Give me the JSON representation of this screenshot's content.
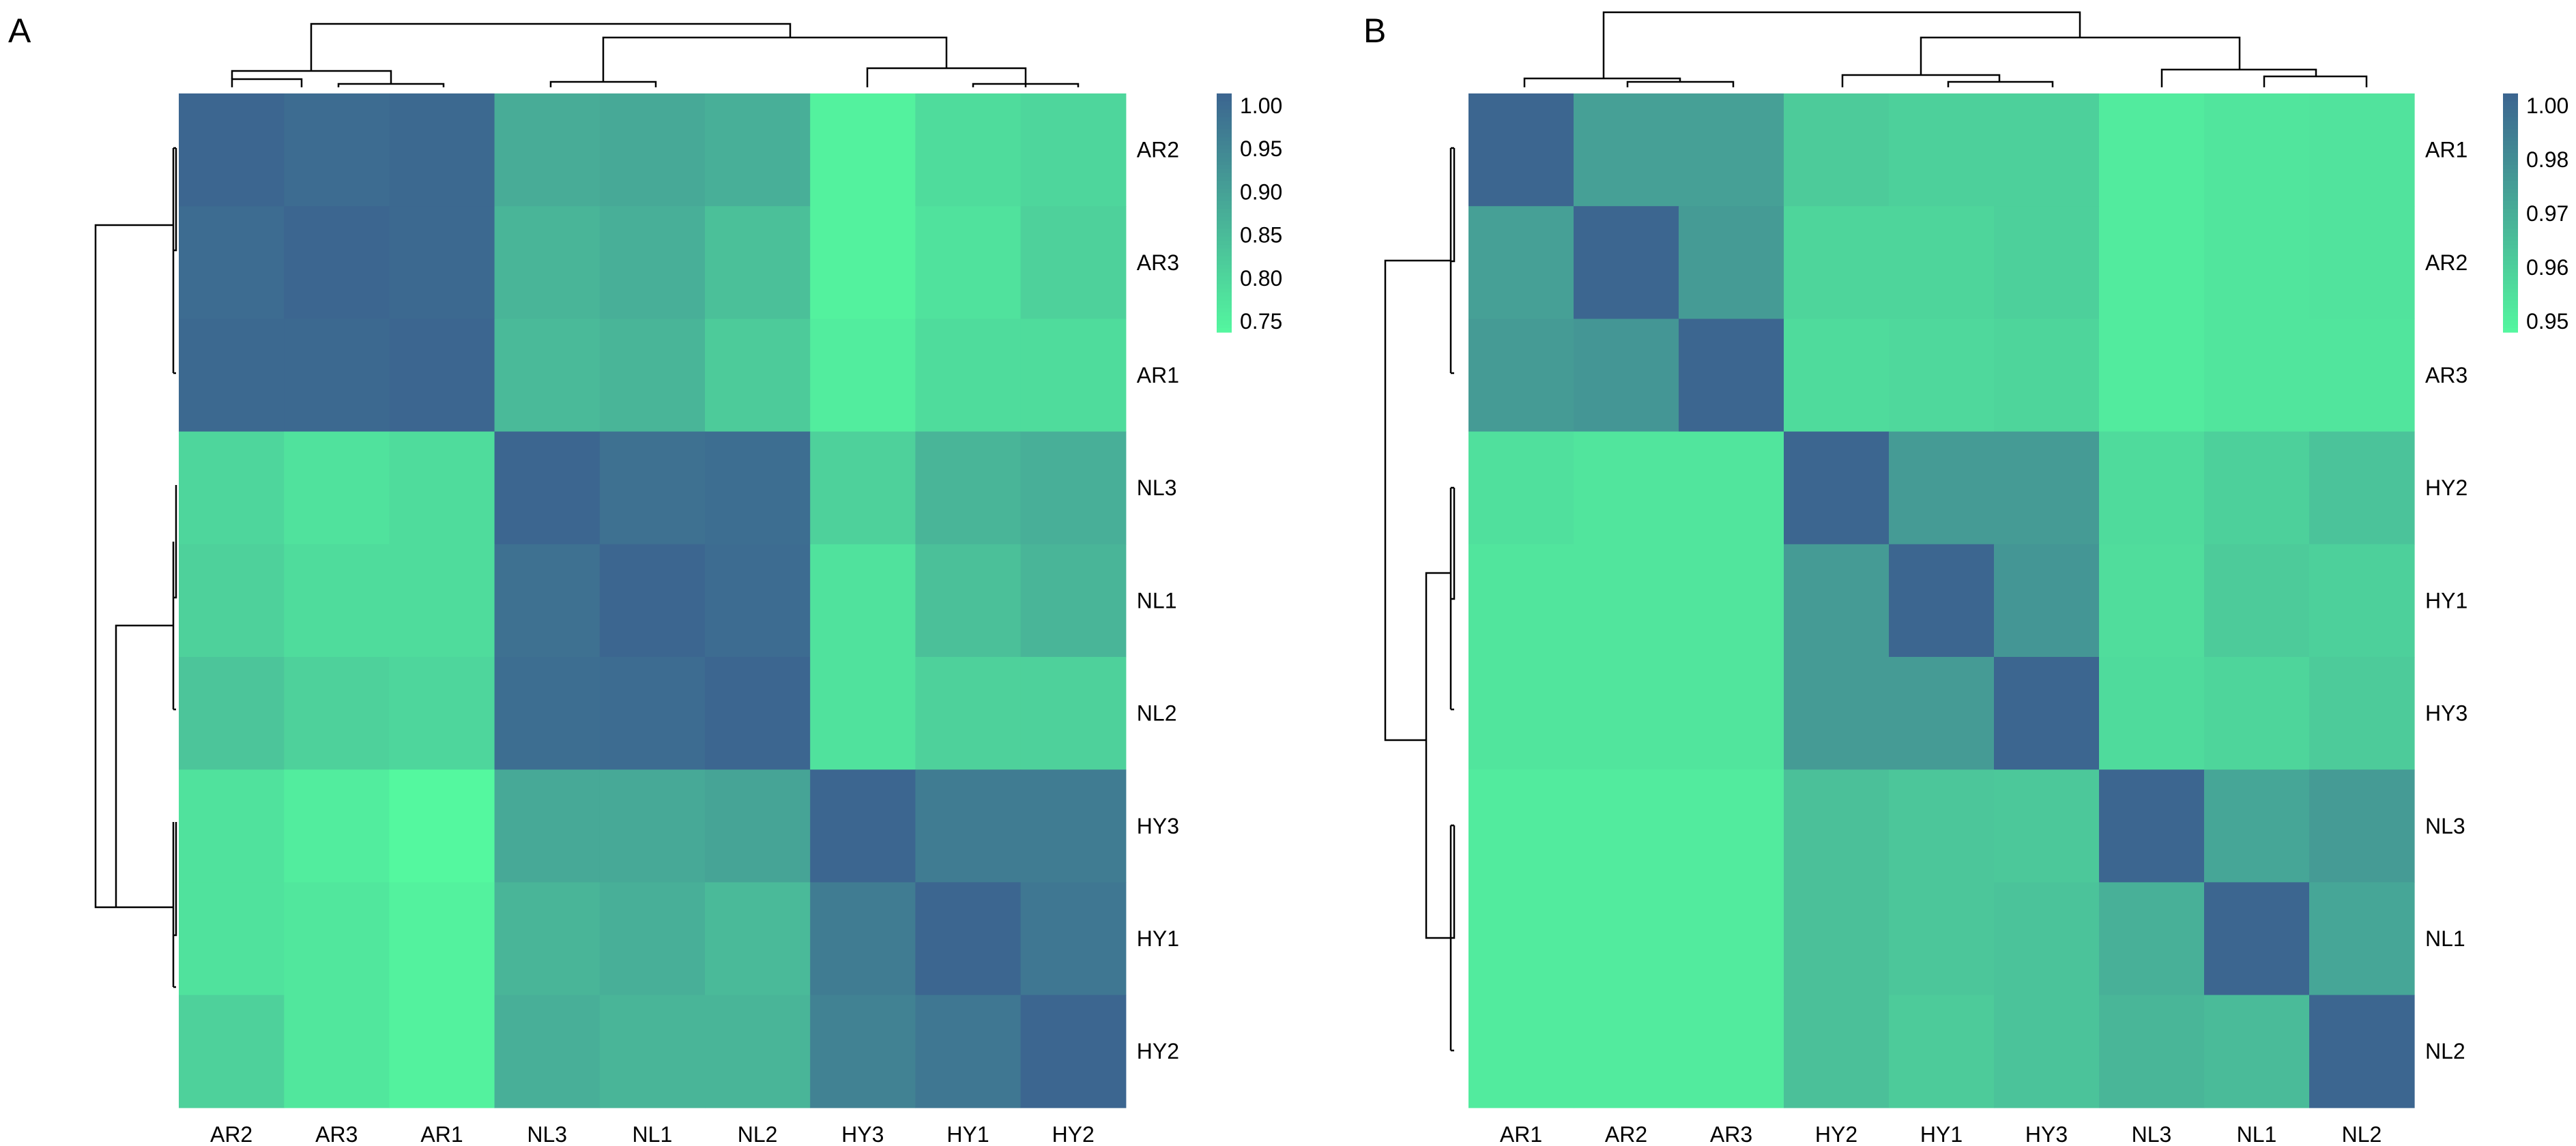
{
  "chart_data": [
    {
      "type": "heatmap",
      "panel_label": "A",
      "title": "",
      "col_labels": [
        "AR2",
        "AR3",
        "AR1",
        "NL3",
        "NL1",
        "NL2",
        "HY3",
        "HY1",
        "HY2"
      ],
      "row_labels": [
        "AR2",
        "AR3",
        "AR1",
        "NL3",
        "NL1",
        "NL2",
        "HY3",
        "HY1",
        "HY2"
      ],
      "values": [
        [
          1.0,
          0.99,
          0.995,
          0.875,
          0.88,
          0.87,
          0.75,
          0.79,
          0.8
        ],
        [
          0.99,
          1.0,
          0.995,
          0.86,
          0.87,
          0.84,
          0.75,
          0.78,
          0.81
        ],
        [
          0.995,
          0.995,
          1.0,
          0.85,
          0.86,
          0.82,
          0.76,
          0.79,
          0.79
        ],
        [
          0.8,
          0.78,
          0.79,
          1.0,
          0.98,
          0.985,
          0.81,
          0.86,
          0.87
        ],
        [
          0.81,
          0.79,
          0.79,
          0.98,
          1.0,
          0.99,
          0.78,
          0.84,
          0.86
        ],
        [
          0.83,
          0.81,
          0.8,
          0.985,
          0.99,
          1.0,
          0.78,
          0.81,
          0.81
        ],
        [
          0.78,
          0.76,
          0.74,
          0.88,
          0.88,
          0.89,
          1.0,
          0.96,
          0.96
        ],
        [
          0.78,
          0.77,
          0.75,
          0.86,
          0.87,
          0.85,
          0.96,
          1.0,
          0.97
        ],
        [
          0.81,
          0.77,
          0.75,
          0.87,
          0.86,
          0.86,
          0.95,
          0.97,
          1.0
        ]
      ],
      "colorbar": {
        "min": 0.74,
        "max": 1.0,
        "ticks": [
          "1.00",
          "0.95",
          "0.90",
          "0.85",
          "0.80",
          "0.75"
        ],
        "low_color": "#54f89f",
        "high_color": "#3c6690"
      }
    },
    {
      "type": "heatmap",
      "panel_label": "B",
      "title": "",
      "col_labels": [
        "AR1",
        "AR2",
        "AR3",
        "HY2",
        "HY1",
        "HY3",
        "NL3",
        "NL1",
        "NL2"
      ],
      "row_labels": [
        "AR1",
        "AR2",
        "AR3",
        "HY2",
        "HY1",
        "HY3",
        "NL3",
        "NL1",
        "NL2"
      ],
      "values": [
        [
          1.0,
          0.978,
          0.978,
          0.962,
          0.96,
          0.96,
          0.95,
          0.952,
          0.953
        ],
        [
          0.978,
          1.0,
          0.98,
          0.958,
          0.958,
          0.96,
          0.95,
          0.952,
          0.953
        ],
        [
          0.98,
          0.982,
          1.0,
          0.956,
          0.957,
          0.958,
          0.95,
          0.952,
          0.952
        ],
        [
          0.954,
          0.952,
          0.952,
          1.0,
          0.98,
          0.98,
          0.956,
          0.96,
          0.965
        ],
        [
          0.952,
          0.952,
          0.952,
          0.98,
          1.0,
          0.982,
          0.955,
          0.962,
          0.96
        ],
        [
          0.952,
          0.952,
          0.952,
          0.98,
          0.98,
          1.0,
          0.956,
          0.958,
          0.962
        ],
        [
          0.95,
          0.95,
          0.95,
          0.966,
          0.964,
          0.963,
          1.0,
          0.976,
          0.98
        ],
        [
          0.95,
          0.95,
          0.95,
          0.966,
          0.964,
          0.965,
          0.972,
          1.0,
          0.976
        ],
        [
          0.95,
          0.95,
          0.95,
          0.966,
          0.962,
          0.965,
          0.97,
          0.968,
          1.0
        ]
      ],
      "colorbar": {
        "min": 0.945,
        "max": 1.0,
        "ticks": [
          "1.00",
          "0.98",
          "0.97",
          "0.96",
          "0.95"
        ],
        "low_color": "#54f89f",
        "high_color": "#3c6690"
      }
    }
  ]
}
